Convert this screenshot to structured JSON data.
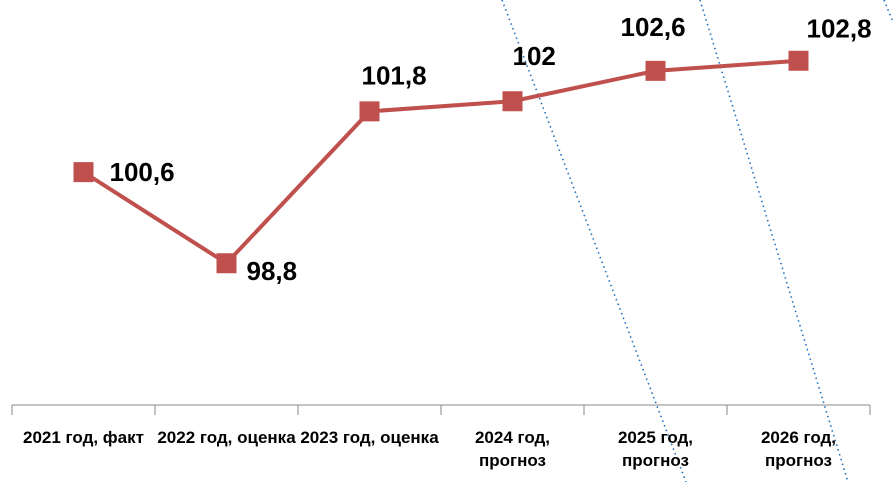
{
  "chart_data": {
    "type": "line",
    "categories": [
      "2021 год, факт",
      "2022 год, оценка",
      "2023 год, оценка",
      "2024 год, прогноз",
      "2025 год, прогноз",
      "2026 год, прогноз"
    ],
    "values": [
      100.6,
      98.8,
      101.8,
      102,
      102.6,
      102.8
    ],
    "value_labels": [
      "100,6",
      "98,8",
      "101,8",
      "102",
      "102,6",
      "102,8"
    ],
    "color": "#c0504d",
    "ylim": [
      96,
      104
    ]
  }
}
